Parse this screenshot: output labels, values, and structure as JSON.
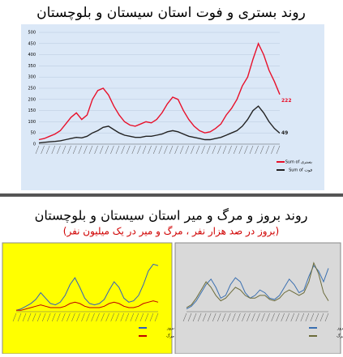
{
  "title": "روند بستری و فوت استان سیستان و بلوچستان",
  "section_title": "روند بروز و مرگ و میر استان سیستان و بلوچستان",
  "section_subtitle": "(بروز در صد هزار نفر ، مرگ و میر در یک میلیون نفر)",
  "chart_data": [
    {
      "type": "line",
      "background": "#dbe8f7",
      "ylim": [
        0,
        500
      ],
      "yticks": [
        0,
        50,
        100,
        150,
        200,
        250,
        300,
        350,
        400,
        450,
        500
      ],
      "grid": true,
      "series": [
        {
          "name": "Sum of بستری",
          "color": "#e8102a",
          "values": [
            20,
            25,
            35,
            45,
            60,
            90,
            120,
            140,
            110,
            130,
            200,
            240,
            250,
            220,
            170,
            130,
            100,
            85,
            80,
            90,
            100,
            95,
            110,
            140,
            180,
            210,
            200,
            150,
            110,
            80,
            60,
            50,
            55,
            70,
            90,
            130,
            160,
            200,
            260,
            300,
            380,
            450,
            400,
            330,
            280,
            222
          ]
        },
        {
          "name": "Sum of فوت",
          "color": "#222222",
          "values": [
            5,
            8,
            10,
            12,
            15,
            20,
            25,
            30,
            28,
            35,
            50,
            60,
            75,
            80,
            65,
            50,
            40,
            35,
            30,
            30,
            35,
            35,
            40,
            45,
            55,
            60,
            55,
            45,
            35,
            30,
            25,
            20,
            20,
            25,
            30,
            40,
            50,
            60,
            80,
            110,
            150,
            170,
            140,
            100,
            70,
            49
          ]
        }
      ]
    },
    {
      "type": "line",
      "background": "#ffff00",
      "ylim": [
        0,
        40
      ],
      "series": [
        {
          "name": "بروز",
          "color": "#2f5fbf",
          "values": [
            1,
            2,
            4,
            6,
            9,
            14,
            10,
            6,
            5,
            7,
            12,
            20,
            25,
            18,
            10,
            6,
            5,
            6,
            9,
            16,
            22,
            18,
            10,
            7,
            8,
            12,
            20,
            30,
            35,
            34
          ]
        },
        {
          "name": "مرگ",
          "color": "#c00000",
          "values": [
            1,
            1,
            2,
            3,
            4,
            5,
            4,
            3,
            3,
            3,
            4,
            6,
            7,
            6,
            4,
            3,
            3,
            3,
            4,
            6,
            7,
            6,
            4,
            3,
            3,
            4,
            6,
            7,
            8,
            7
          ]
        }
      ]
    },
    {
      "type": "line",
      "background": "#d9d9d9",
      "ylim": [
        0,
        40
      ],
      "series": [
        {
          "name": "بروز",
          "color": "#3a6fb0",
          "values": [
            2,
            4,
            8,
            14,
            20,
            24,
            18,
            10,
            12,
            20,
            25,
            22,
            14,
            10,
            12,
            16,
            14,
            10,
            9,
            12,
            18,
            24,
            20,
            14,
            16,
            26,
            34,
            30,
            22,
            32
          ]
        },
        {
          "name": "مرگ",
          "color": "#6b6b3a",
          "values": [
            3,
            5,
            10,
            16,
            22,
            18,
            12,
            8,
            10,
            14,
            18,
            16,
            12,
            10,
            10,
            12,
            12,
            9,
            8,
            10,
            14,
            16,
            14,
            12,
            14,
            22,
            36,
            28,
            14,
            8
          ]
        }
      ]
    }
  ]
}
